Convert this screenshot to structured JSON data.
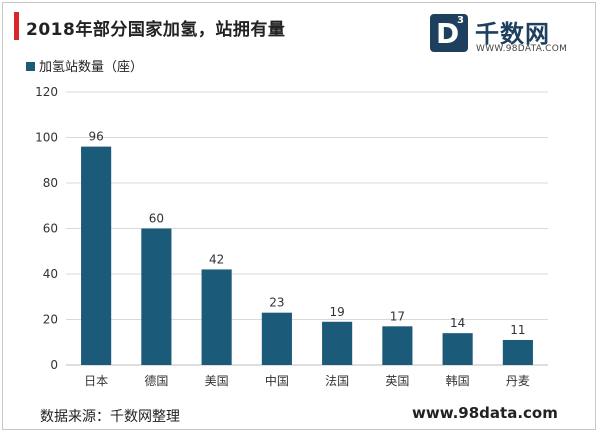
{
  "title": "2018年部分国家加氢，站拥有量",
  "logo": {
    "mark": "D",
    "superscript": "3",
    "name": "千数网",
    "url": "WWW.98DATA.COM"
  },
  "source": "数据来源：千数网整理",
  "site": "www.98data.com",
  "colors": {
    "bar": "#1b5a78",
    "accent": "#d9262a",
    "brand": "#1f3f5f"
  },
  "chart_data": {
    "type": "bar",
    "categories": [
      "日本",
      "德国",
      "美国",
      "中国",
      "法国",
      "英国",
      "韩国",
      "丹麦"
    ],
    "series": [
      {
        "name": "加氢站数量（座）",
        "values": [
          96,
          60,
          42,
          23,
          19,
          17,
          14,
          11
        ]
      }
    ],
    "ylim": [
      0,
      120
    ],
    "yticks": [
      0,
      20,
      40,
      60,
      80,
      100,
      120
    ],
    "grid": true,
    "legend": "top-left",
    "data_labels": true
  }
}
